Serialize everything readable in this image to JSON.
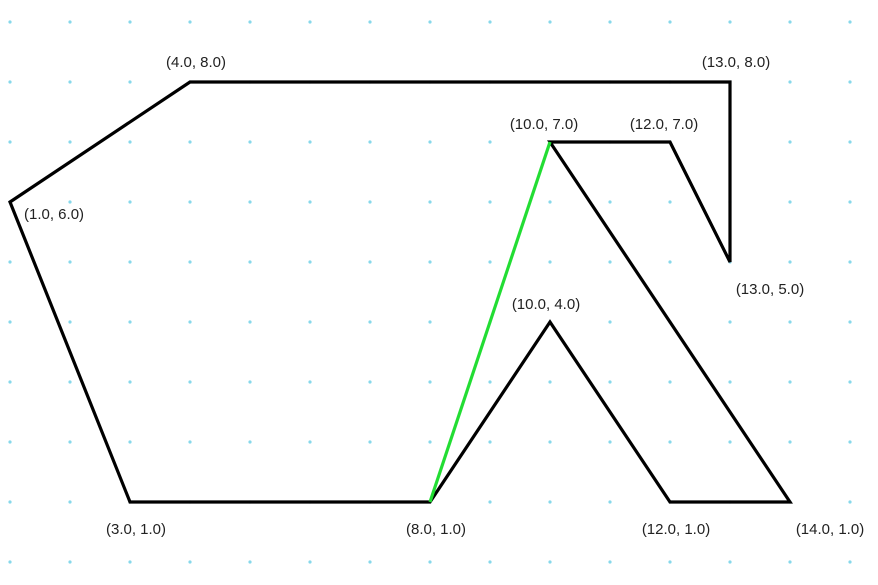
{
  "diagram": {
    "grid": {
      "x_min": 1,
      "x_max": 15,
      "y_min": 0,
      "y_max": 9,
      "dot_color": "#87d8ea"
    },
    "colors": {
      "outline": "#000000",
      "highlight": "#22dd33"
    },
    "vertices": [
      {
        "id": "v-1-6",
        "x": 1,
        "y": 6,
        "label": "(1.0, 6.0)",
        "anchor": "right"
      },
      {
        "id": "v-4-8",
        "x": 4,
        "y": 8,
        "label": "(4.0, 8.0)",
        "anchor": "above"
      },
      {
        "id": "v-13-8",
        "x": 13,
        "y": 8,
        "label": "(13.0, 8.0)",
        "anchor": "above"
      },
      {
        "id": "v-13-5",
        "x": 13,
        "y": 5,
        "label": "(13.0, 5.0)",
        "anchor": "below-right"
      },
      {
        "id": "v-12-7",
        "x": 12,
        "y": 7,
        "label": "(12.0, 7.0)",
        "anchor": "above-left"
      },
      {
        "id": "v-10-7",
        "x": 10,
        "y": 7,
        "label": "(10.0, 7.0)",
        "anchor": "above-left"
      },
      {
        "id": "v-14-1",
        "x": 14,
        "y": 1,
        "label": "(14.0, 1.0)",
        "anchor": "below-right"
      },
      {
        "id": "v-12-1",
        "x": 12,
        "y": 1,
        "label": "(12.0, 1.0)",
        "anchor": "below-left"
      },
      {
        "id": "v-10-4",
        "x": 10,
        "y": 4,
        "label": "(10.0, 4.0)",
        "anchor": "above-right"
      },
      {
        "id": "v-8-1",
        "x": 8,
        "y": 1,
        "label": "(8.0, 1.0)",
        "anchor": "below-left"
      },
      {
        "id": "v-3-1",
        "x": 3,
        "y": 1,
        "label": "(3.0, 1.0)",
        "anchor": "below-left"
      }
    ],
    "polygon": [
      [
        1,
        6
      ],
      [
        4,
        8
      ],
      [
        13,
        8
      ],
      [
        13,
        5
      ],
      [
        12,
        7
      ],
      [
        10,
        7
      ],
      [
        14,
        1
      ],
      [
        12,
        1
      ],
      [
        10,
        4
      ],
      [
        8,
        1
      ],
      [
        3,
        1
      ]
    ],
    "highlight_edges": [
      {
        "from": [
          8,
          1
        ],
        "to": [
          10,
          7
        ]
      }
    ]
  }
}
